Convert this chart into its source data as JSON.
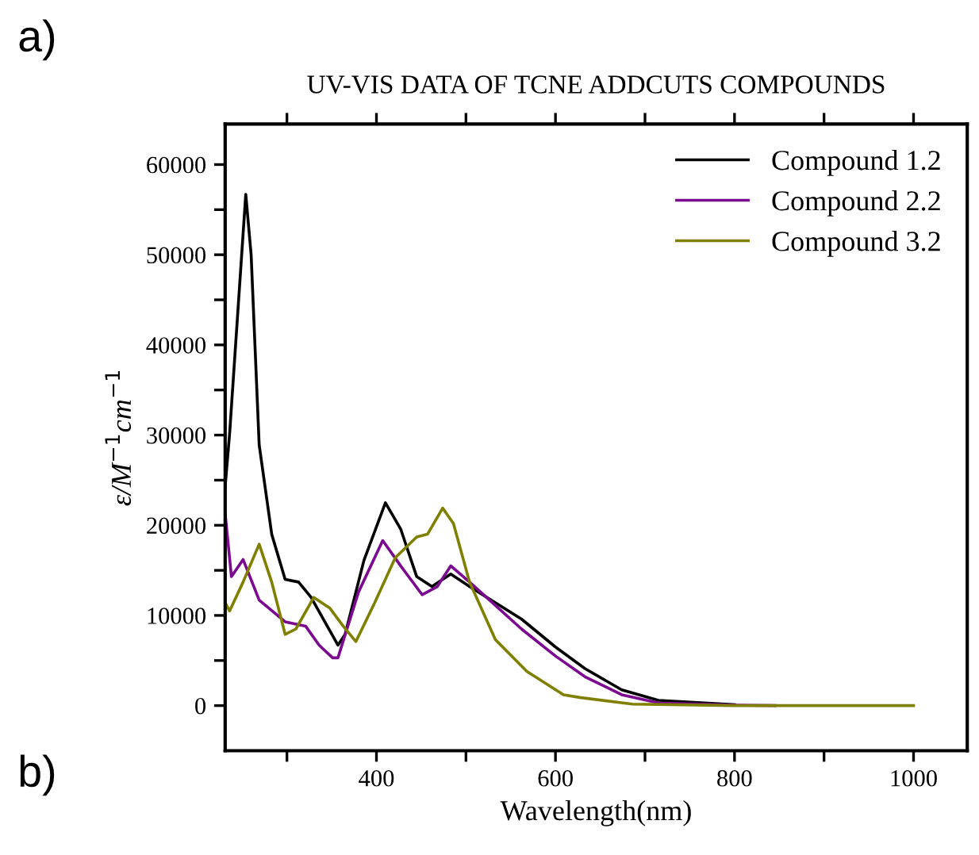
{
  "chart_data": {
    "type": "line",
    "title": "UV-VIS DATA OF TCNE ADDCUTS COMPOUNDS",
    "xlabel": "Wavelength(nm)",
    "ylabel": "ε/M$^{−1}$cm$^{−1}$",
    "annotations": [
      "a)",
      "b)"
    ],
    "xlim": [
      231,
      1060
    ],
    "ylim": [
      -5000,
      64500
    ],
    "xticks": [
      {
        "value": 300,
        "label": null
      },
      400,
      {
        "value": 500,
        "label": null
      },
      600,
      {
        "value": 700,
        "label": null
      },
      800,
      {
        "value": 900,
        "label": null
      },
      1000
    ],
    "yticks": [
      0,
      {
        "value": 5000,
        "label": null
      },
      10000,
      {
        "value": 15000,
        "label": null
      },
      20000,
      {
        "value": 25000,
        "label": null
      },
      30000,
      {
        "value": 35000,
        "label": null
      },
      40000,
      {
        "value": 45000,
        "label": null
      },
      50000,
      {
        "value": 55000,
        "label": null
      },
      60000
    ],
    "grid": false,
    "legend": "top right",
    "series": [
      {
        "name": "Compound 1.2",
        "color": "#000000",
        "x": [
          231,
          236,
          254,
          260,
          269,
          283,
          298,
          313,
          327,
          357,
          365,
          386,
          410,
          427,
          445,
          462,
          483,
          504,
          562,
          600,
          633,
          674,
          715,
          800
        ],
        "values": [
          24300,
          30200,
          56700,
          50000,
          28900,
          19000,
          14000,
          13700,
          12000,
          6700,
          7900,
          16100,
          22500,
          19600,
          14300,
          13200,
          14600,
          13200,
          9600,
          6500,
          4100,
          1750,
          580,
          100
        ]
      },
      {
        "name": "Compound 2.2",
        "color": "#7b0a90",
        "x": [
          231,
          238,
          251,
          269,
          298,
          321,
          336,
          351,
          357,
          380,
          407,
          427,
          451,
          468,
          483,
          504,
          562,
          600,
          633,
          674,
          715,
          800,
          845
        ],
        "values": [
          21300,
          14300,
          16200,
          11700,
          9300,
          8800,
          6700,
          5300,
          5300,
          12600,
          18300,
          15500,
          12300,
          13200,
          15500,
          13700,
          8500,
          5500,
          3200,
          1200,
          300,
          50,
          0
        ]
      },
      {
        "name": "Compound 3.2",
        "color": "#808000",
        "x": [
          231,
          236,
          251,
          269,
          283,
          298,
          310,
          330,
          348,
          363,
          377,
          398,
          421,
          445,
          457,
          474,
          486,
          504,
          533,
          568,
          609,
          627,
          686,
          800,
          1000
        ],
        "values": [
          11400,
          10500,
          13700,
          17900,
          13700,
          7900,
          8500,
          12000,
          10800,
          8800,
          7100,
          11400,
          16400,
          18700,
          19000,
          21900,
          20200,
          13700,
          7300,
          3800,
          1200,
          900,
          170,
          0,
          0
        ]
      }
    ]
  }
}
